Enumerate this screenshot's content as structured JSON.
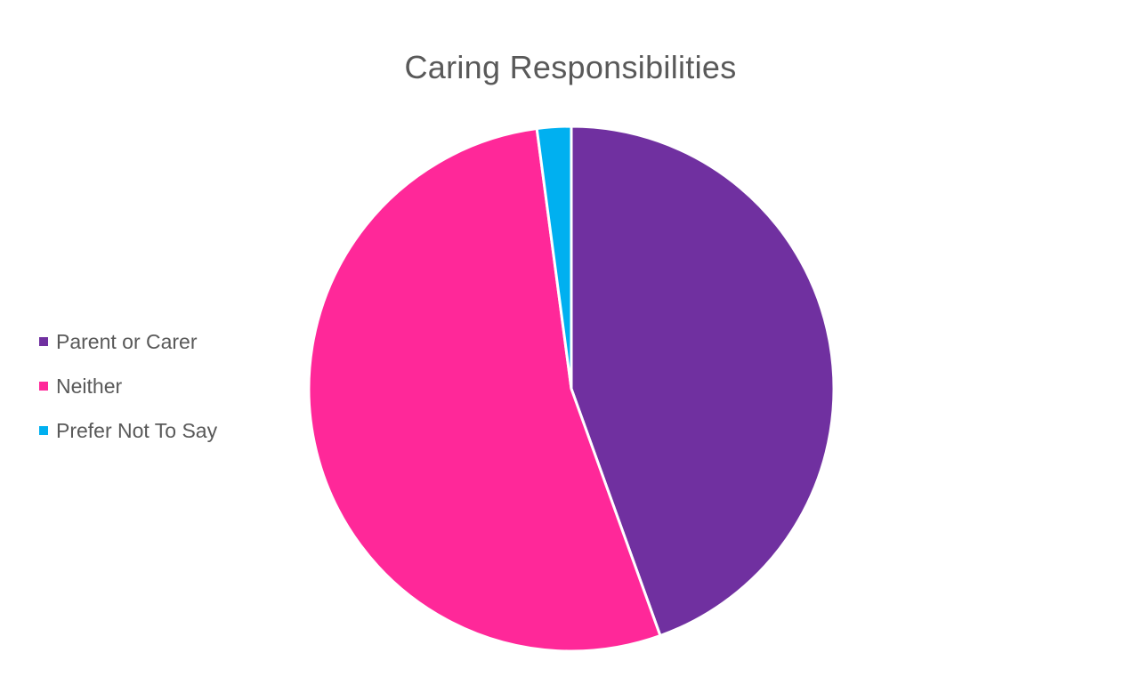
{
  "chart_data": {
    "type": "pie",
    "title": "Caring Responsibilities",
    "legend_position": "left",
    "slices": [
      {
        "label": "Parent or Carer",
        "value": 44.5,
        "color": "#7030A0"
      },
      {
        "label": "Neither",
        "value": 53.4,
        "color": "#FF2899"
      },
      {
        "label": "Prefer Not To Say",
        "value": 2.1,
        "color": "#00B0F0"
      }
    ]
  }
}
